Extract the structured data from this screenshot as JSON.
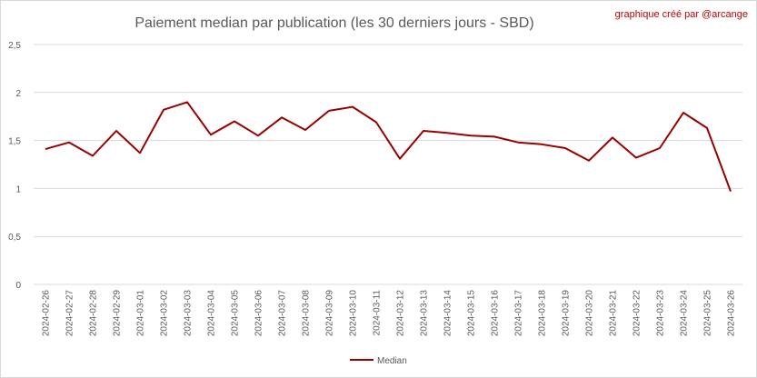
{
  "chart_data": {
    "type": "line",
    "title": "Paiement median par publication (les 30 derniers jours - SBD)",
    "credit": "graphique créé par @arcange",
    "xlabel": "",
    "ylabel": "",
    "ylim": [
      0,
      2.5
    ],
    "yticks": [
      "0",
      "0,5",
      "1",
      "1,5",
      "2",
      "2,5"
    ],
    "ytick_values": [
      0,
      0.5,
      1,
      1.5,
      2,
      2.5
    ],
    "grid": true,
    "legend_position": "bottom",
    "colors": {
      "series": "#990000",
      "grid": "#d9d9d9",
      "text": "#595959",
      "credit": "#c00000"
    },
    "categories": [
      "2024-02-26",
      "2024-02-27",
      "2024-02-28",
      "2024-02-29",
      "2024-03-01",
      "2024-03-02",
      "2024-03-03",
      "2024-03-04",
      "2024-03-05",
      "2024-03-06",
      "2024-03-07",
      "2024-03-08",
      "2024-03-09",
      "2024-03-10",
      "2024-03-11",
      "2024-03-12",
      "2024-03-13",
      "2024-03-14",
      "2024-03-15",
      "2024-03-16",
      "2024-03-17",
      "2024-03-18",
      "2024-03-19",
      "2024-03-20",
      "2024-03-21",
      "2024-03-22",
      "2024-03-23",
      "2024-03-24",
      "2024-03-25",
      "2024-03-26"
    ],
    "series": [
      {
        "name": "Median",
        "values": [
          1.41,
          1.48,
          1.34,
          1.6,
          1.37,
          1.82,
          1.9,
          1.56,
          1.7,
          1.55,
          1.74,
          1.61,
          1.81,
          1.85,
          1.69,
          1.31,
          1.6,
          1.58,
          1.55,
          1.54,
          1.48,
          1.46,
          1.42,
          1.29,
          1.53,
          1.32,
          1.42,
          1.79,
          1.63,
          0.97
        ]
      }
    ]
  }
}
